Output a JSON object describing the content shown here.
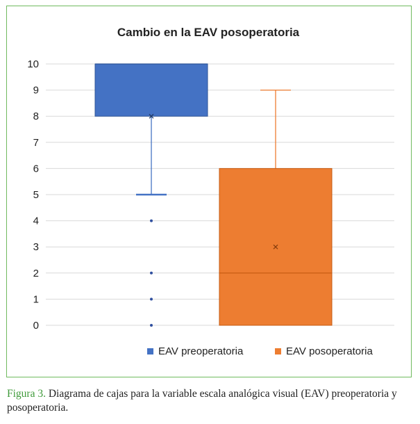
{
  "chart_data": {
    "type": "boxplot",
    "title": "Cambio en la EAV posoperatoria",
    "xlabel": "",
    "ylabel": "",
    "ylim": [
      0,
      10
    ],
    "yticks": [
      0,
      1,
      2,
      3,
      4,
      5,
      6,
      7,
      8,
      9,
      10
    ],
    "ytick_labels": [
      "0",
      "1",
      "2",
      "3",
      "4",
      "5",
      "6",
      "7",
      "8",
      "9",
      "10"
    ],
    "grid": true,
    "legend_position": "bottom",
    "series": [
      {
        "name": "EAV preoperatoria",
        "color": "#4472c4",
        "whisker_min": 5,
        "q1": 8,
        "median": 10,
        "q3": 10,
        "whisker_max": 10,
        "mean": 8,
        "outliers": [
          4,
          2,
          1,
          0
        ]
      },
      {
        "name": "EAV posoperatoria",
        "color": "#ed7d31",
        "whisker_min": 0,
        "q1": 0,
        "median": 2,
        "q3": 6,
        "whisker_max": 9,
        "mean": 3,
        "outliers": []
      }
    ]
  },
  "caption": {
    "label": "Figura 3.",
    "text": " Diagrama de cajas para la variable escala analógica visual (EAV) preoperatoria y posoperatoria."
  },
  "colors": {
    "border": "#6fba5e",
    "grid": "#d9d9d9",
    "figure_label": "#3f9a3a"
  }
}
